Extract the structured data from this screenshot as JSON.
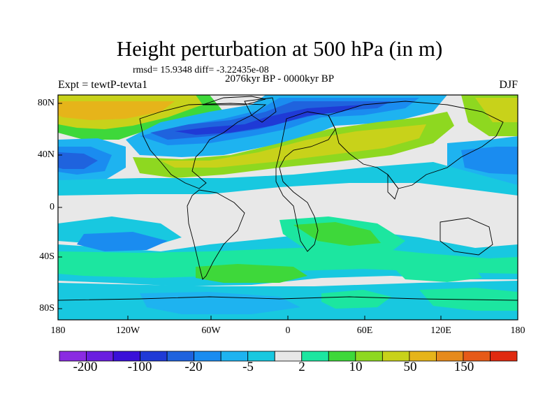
{
  "header": {
    "title": "Height perturbation at 500 hPa (in m)",
    "stats": "rmsd= 15.9348 diff= -3.22435e-08",
    "period": "2076kyr BP - 0000kyr BP",
    "experiment": "Expt = tewtP-tevta1",
    "season": "DJF"
  },
  "map": {
    "lat_labels": [
      "80N",
      "40N",
      "0",
      "40S",
      "80S"
    ],
    "lon_labels": [
      "180",
      "120W",
      "60W",
      "0",
      "60E",
      "120E",
      "180"
    ]
  },
  "colorbar": {
    "labels": [
      "-200",
      "-100",
      "-20",
      "-5",
      "2",
      "10",
      "50",
      "150"
    ],
    "colors": [
      "#8a2be2",
      "#6a1ee0",
      "#3a10d8",
      "#1f3ad6",
      "#1f63de",
      "#1a8cf0",
      "#1eb3f0",
      "#18c8e0",
      "#e8e8e8",
      "#1ce6a0",
      "#3ed83a",
      "#8ed820",
      "#c8d21a",
      "#e6b41a",
      "#e68a1c",
      "#e65a18",
      "#e02a10"
    ]
  }
}
